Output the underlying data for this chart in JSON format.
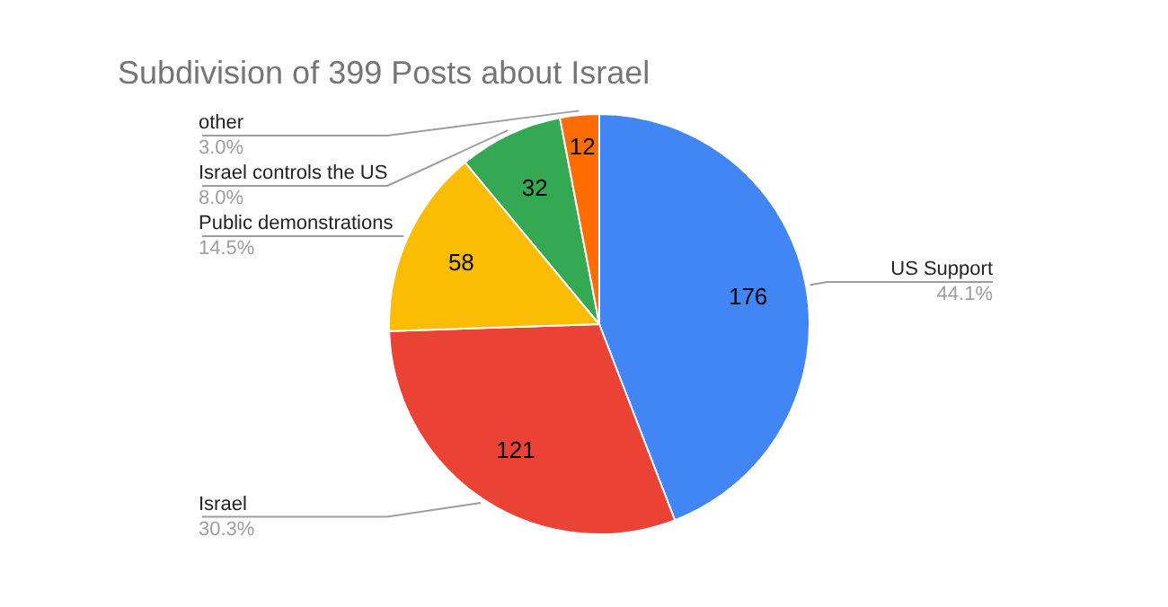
{
  "chart_data": {
    "type": "pie",
    "title": "Subdivision of 399 Posts about Israel",
    "categories": [
      "US Support",
      "Israel",
      "Public demonstrations",
      "Israel controls the US",
      "other"
    ],
    "values": [
      44.1,
      30.3,
      14.5,
      8.0,
      3.0
    ],
    "colors": [
      "#4285f4",
      "#ea4335",
      "#fbbc04",
      "#34a853",
      "#ff6d01"
    ],
    "value_labels": [
      "44.1%",
      "30.3%",
      "14.5%",
      "8.0%",
      "3.0%"
    ],
    "annotations": [
      {
        "text": "176",
        "x": "US Support"
      },
      {
        "text": "121",
        "x": "Israel"
      },
      {
        "text": "58",
        "x": "Public demonstrations"
      },
      {
        "text": "32",
        "x": "Israel controls the US"
      },
      {
        "text": "12",
        "x": "other"
      }
    ]
  }
}
